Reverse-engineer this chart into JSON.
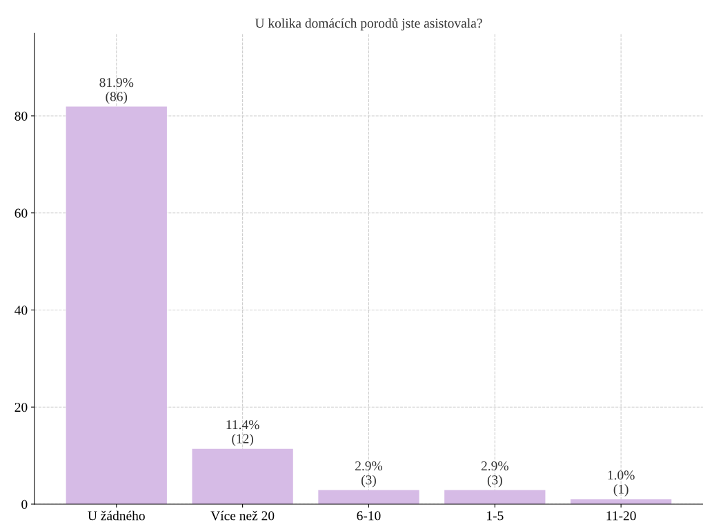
{
  "chart_data": {
    "type": "bar",
    "title": "U kolika domácích porodů jste asistovala?",
    "categories": [
      "U žádného",
      "Více než 20",
      "6-10",
      "1-5",
      "11-20"
    ],
    "values": [
      81.9,
      11.4,
      2.9,
      2.9,
      1.0
    ],
    "value_labels": [
      "81.9%\n(86)",
      "11.4%\n(12)",
      "2.9%\n(3)",
      "2.9%\n(3)",
      "1.0%\n(1)"
    ],
    "color": "#d6bbe6",
    "ylim": [
      0,
      97
    ],
    "yticks": [
      0,
      20,
      40,
      60,
      80
    ],
    "grid": true
  }
}
